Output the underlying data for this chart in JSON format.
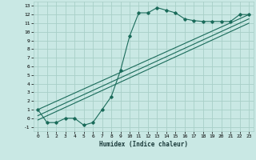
{
  "title": "",
  "xlabel": "Humidex (Indice chaleur)",
  "ylabel": "",
  "bg_color": "#c9e8e4",
  "grid_color": "#a8cfc8",
  "line_color": "#1a6b5a",
  "xlim": [
    -0.5,
    23.5
  ],
  "ylim": [
    -1.5,
    13.5
  ],
  "xticks": [
    0,
    1,
    2,
    3,
    4,
    5,
    6,
    7,
    8,
    9,
    10,
    11,
    12,
    13,
    14,
    15,
    16,
    17,
    18,
    19,
    20,
    21,
    22,
    23
  ],
  "yticks": [
    -1,
    0,
    1,
    2,
    3,
    4,
    5,
    6,
    7,
    8,
    9,
    10,
    11,
    12,
    13
  ],
  "curve_x": [
    0,
    1,
    2,
    3,
    4,
    5,
    6,
    7,
    8,
    9,
    10,
    11,
    12,
    13,
    14,
    15,
    16,
    17,
    18,
    19,
    20,
    21,
    22,
    23
  ],
  "curve_y": [
    1.0,
    -0.5,
    -0.5,
    0.0,
    0.0,
    -0.8,
    -0.5,
    1.0,
    2.5,
    5.5,
    9.5,
    12.2,
    12.2,
    12.8,
    12.5,
    12.2,
    11.5,
    11.3,
    11.2,
    11.2,
    11.2,
    11.2,
    12.0,
    12.0
  ],
  "line1_x": [
    0,
    23
  ],
  "line1_y": [
    1.0,
    12.0
  ],
  "line2_x": [
    0,
    23
  ],
  "line2_y": [
    0.3,
    11.5
  ],
  "line3_x": [
    0,
    23
  ],
  "line3_y": [
    -0.2,
    11.0
  ]
}
